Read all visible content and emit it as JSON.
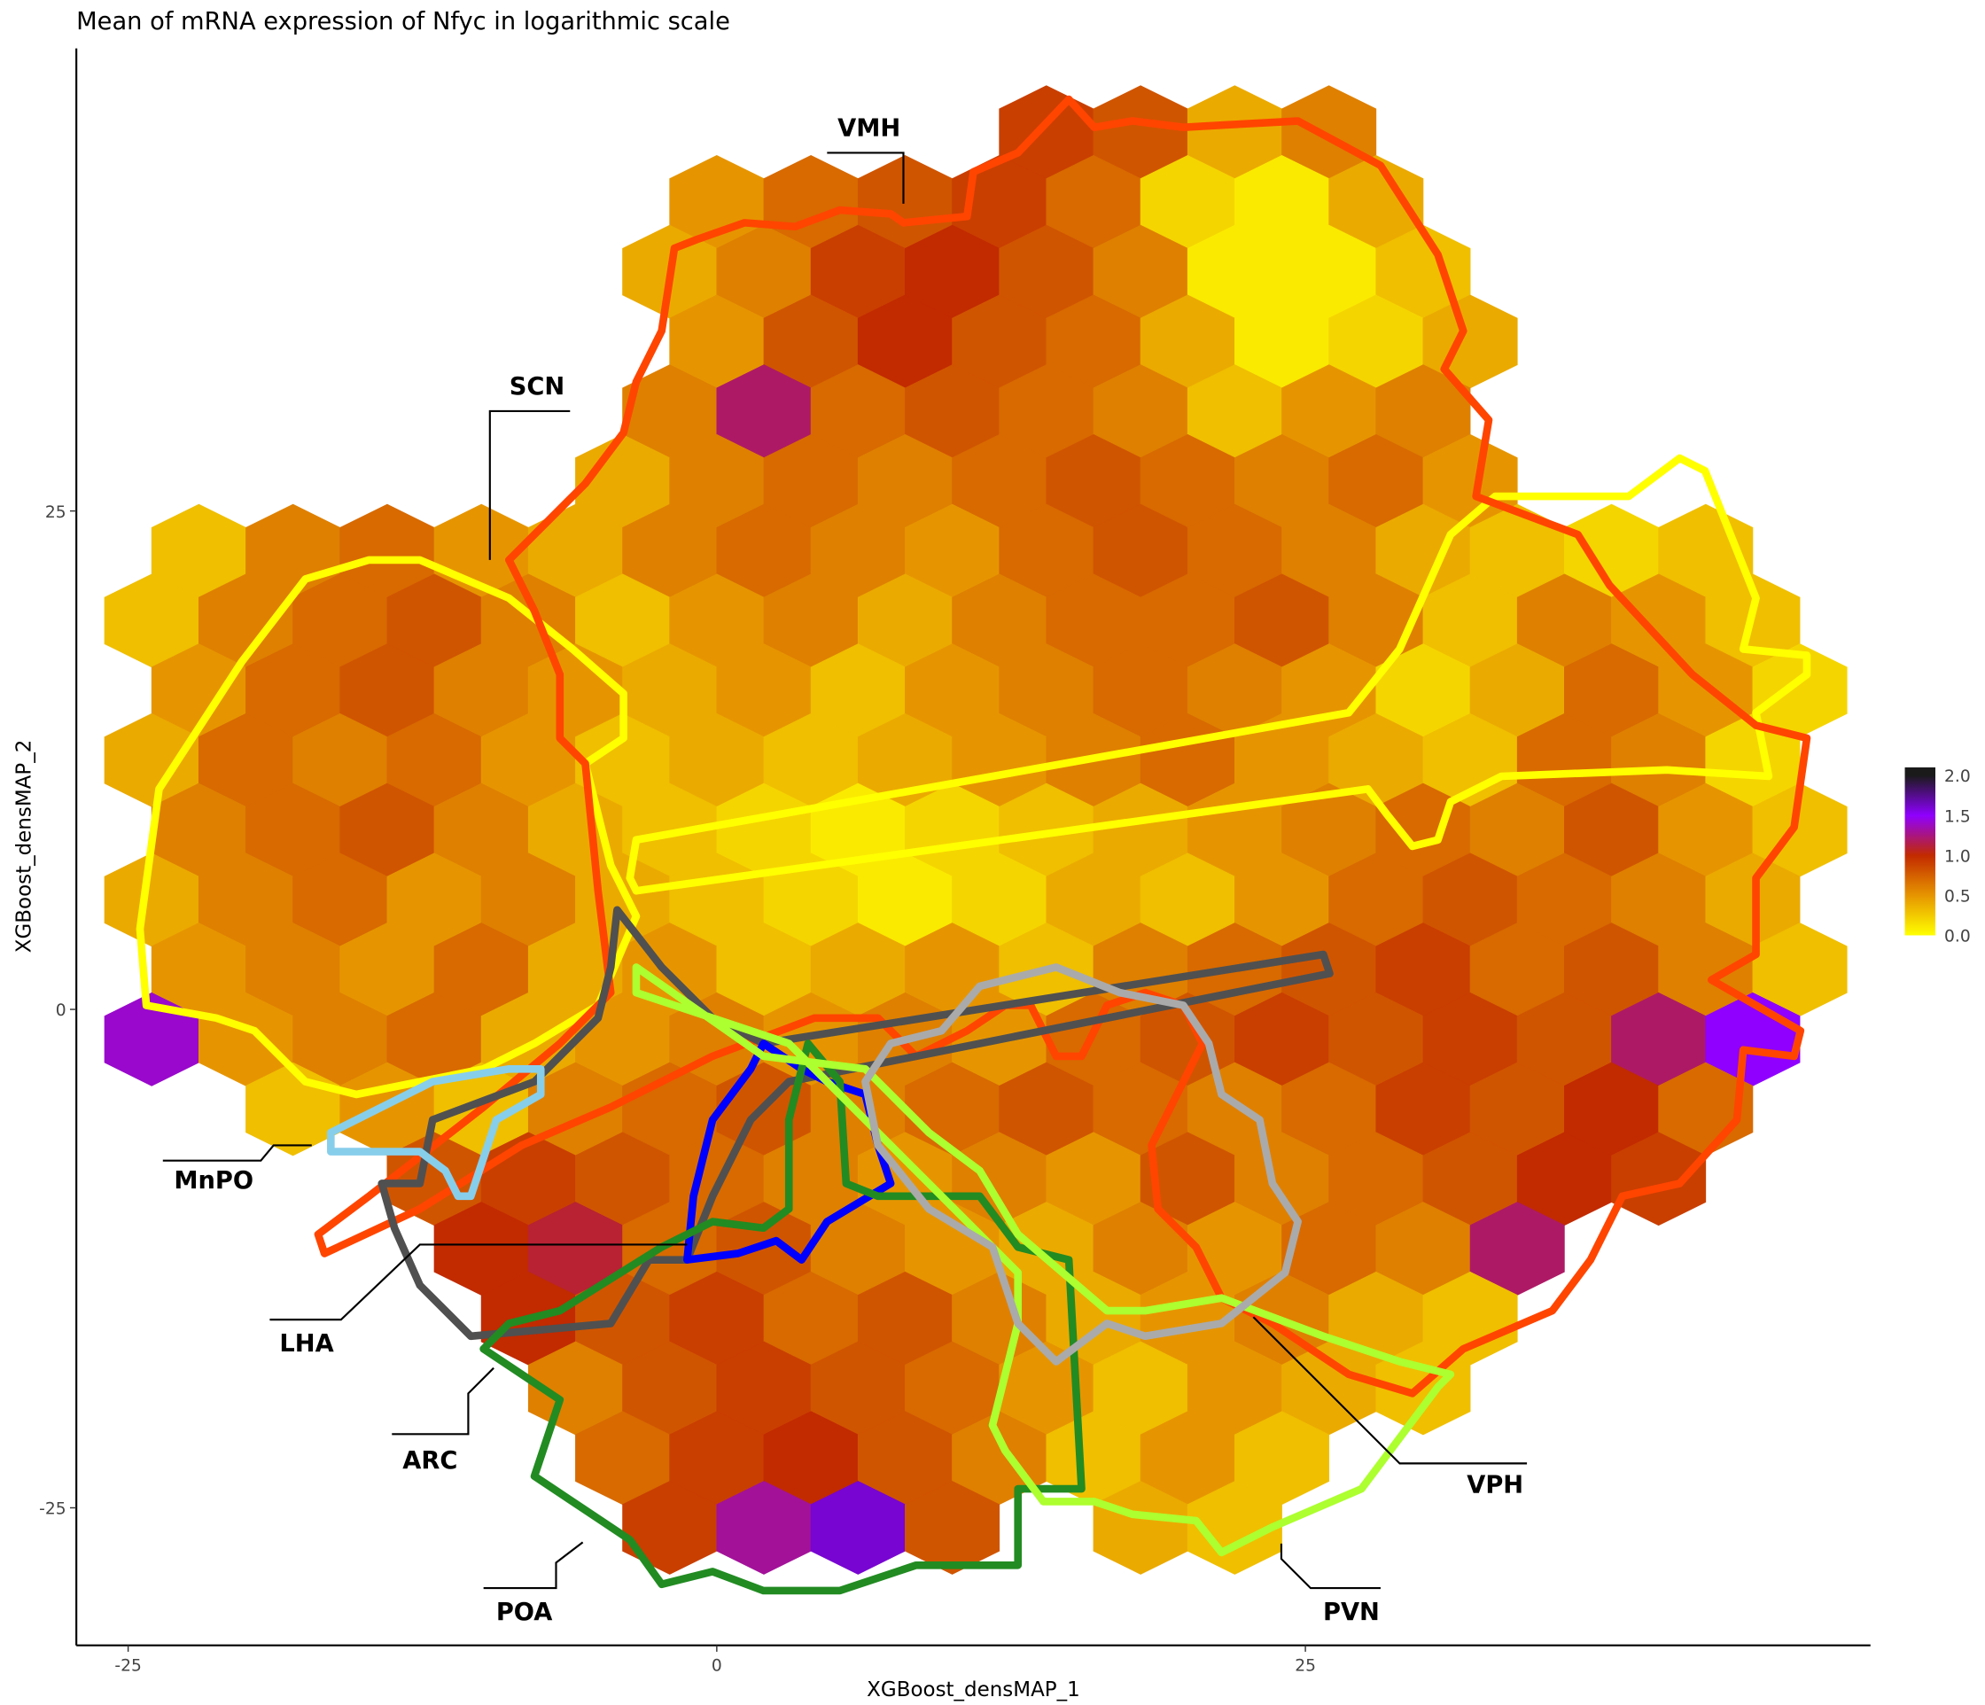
{
  "chart_data": {
    "type": "hexbin",
    "title": "Mean of mRNA expression of Nfyc in logarithmic scale",
    "x_label": "XGBoost_densMAP_1",
    "y_label": "XGBoost_densMAP_2",
    "xlim": [
      -27.2,
      49.0
    ],
    "ylim": [
      -31.9,
      48.2
    ],
    "xticks": [
      -25,
      0,
      25
    ],
    "yticks": [
      -25,
      0,
      25
    ],
    "binwidth": 4,
    "colormap": [
      "#ffff00",
      "#e69500",
      "#c22a00",
      "#8f00ff",
      "#1a1a1a"
    ],
    "clim": [
      0,
      2.1
    ],
    "cticks": [
      {
        "value": 0,
        "label": "0.0"
      },
      0.5,
      {
        "value": 1,
        "label": "1.0"
      },
      1.5,
      {
        "value": 2,
        "label": "2.0"
      }
    ],
    "regions": [
      "VMH",
      "SCN",
      "MnPO",
      "LHA",
      "ARC",
      "POA",
      "PVN",
      "VPH"
    ],
    "hex_rows": [
      {
        "y": 44,
        "x_start": 14,
        "values": [
          0.9,
          0.8,
          0.4,
          0.6
        ]
      },
      {
        "y": 40.5,
        "x_start": 0,
        "values": [
          0.5,
          0.7,
          0.8,
          0.9,
          0.7,
          0.2,
          0.1,
          0.4
        ]
      },
      {
        "y": 37,
        "x_start": -2,
        "values": [
          0.4,
          0.6,
          0.9,
          1.0,
          0.8,
          0.6,
          0.1,
          0.1,
          0.3
        ]
      },
      {
        "y": 33.5,
        "x_start": 0,
        "values": [
          0.5,
          0.8,
          1.0,
          0.8,
          0.7,
          0.4,
          0.1,
          0.2,
          0.4
        ]
      },
      {
        "y": 30,
        "x_start": -2,
        "values": [
          0.6,
          1.2,
          0.7,
          0.8,
          0.7,
          0.6,
          0.3,
          0.5,
          0.6
        ]
      },
      {
        "y": 26.5,
        "x_start": -4,
        "values": [
          0.4,
          0.6,
          0.7,
          0.6,
          0.7,
          0.8,
          0.7,
          0.6,
          0.7,
          0.5
        ]
      },
      {
        "y": 23,
        "x_start": -22,
        "values": [
          0.3,
          0.6,
          0.7,
          0.5,
          0.4,
          0.6,
          0.7,
          0.6,
          0.5,
          0.7,
          0.8,
          0.7,
          0.6,
          0.4,
          0.3,
          0.2,
          0.3
        ]
      },
      {
        "y": 19.5,
        "x_start": -24,
        "values": [
          0.3,
          0.6,
          0.7,
          0.8,
          0.6,
          0.3,
          0.5,
          0.6,
          0.4,
          0.6,
          0.7,
          0.7,
          0.8,
          0.6,
          0.3,
          0.6,
          0.5,
          0.3
        ]
      },
      {
        "y": 16,
        "x_start": -22,
        "values": [
          0.5,
          0.7,
          0.8,
          0.6,
          0.5,
          0.4,
          0.5,
          0.3,
          0.5,
          0.6,
          0.7,
          0.6,
          0.5,
          0.2,
          0.4,
          0.7,
          0.5,
          0.2
        ]
      },
      {
        "y": 12.5,
        "x_start": -24,
        "values": [
          0.4,
          0.7,
          0.6,
          0.7,
          0.5,
          0.3,
          0.4,
          0.3,
          0.4,
          0.5,
          0.6,
          0.7,
          0.5,
          0.4,
          0.3,
          0.7,
          0.6,
          0.2
        ]
      },
      {
        "y": 9,
        "x_start": -22,
        "values": [
          0.6,
          0.7,
          0.8,
          0.6,
          0.4,
          0.3,
          0.2,
          0.1,
          0.2,
          0.3,
          0.4,
          0.5,
          0.6,
          0.7,
          0.6,
          0.8,
          0.5,
          0.3
        ]
      },
      {
        "y": 5.5,
        "x_start": -24,
        "values": [
          0.4,
          0.6,
          0.7,
          0.5,
          0.6,
          0.4,
          0.3,
          0.2,
          0.1,
          0.2,
          0.4,
          0.3,
          0.5,
          0.7,
          0.8,
          0.7,
          0.6,
          0.4
        ]
      },
      {
        "y": 2,
        "x_start": -22,
        "values": [
          0.5,
          0.6,
          0.5,
          0.7,
          0.4,
          0.5,
          0.3,
          0.4,
          0.5,
          0.3,
          0.6,
          0.7,
          0.8,
          0.9,
          0.7,
          0.8,
          0.6,
          0.3
        ]
      },
      {
        "y": -1.5,
        "x_start": -24,
        "values": [
          1.4,
          0.5,
          0.6,
          0.7,
          0.4,
          0.5,
          0.6,
          0.5,
          0.6,
          0.5,
          0.7,
          0.8,
          0.9,
          0.8,
          0.9,
          0.8,
          1.2,
          1.5
        ]
      },
      {
        "y": -5,
        "x_start": -18,
        "values": [
          0.3,
          0.5,
          0.3,
          0.6,
          0.7,
          0.8,
          0.6,
          0.7,
          0.8,
          0.7,
          0.6,
          0.7,
          0.9,
          0.8,
          1.0,
          0.7
        ]
      },
      {
        "y": -8.5,
        "x_start": -12,
        "values": [
          0.8,
          0.9,
          0.8,
          0.7,
          0.6,
          0.5,
          0.6,
          0.5,
          0.8,
          0.6,
          0.7,
          0.8,
          1.0,
          0.9
        ]
      },
      {
        "y": -12,
        "x_start": -10,
        "values": [
          1.0,
          1.1,
          0.7,
          0.8,
          0.6,
          0.5,
          0.4,
          0.6,
          0.5,
          0.7,
          0.6,
          1.2
        ]
      },
      {
        "y": -15.5,
        "x_start": -8,
        "values": [
          1.0,
          0.8,
          0.9,
          0.7,
          0.8,
          0.6,
          0.4,
          0.5,
          0.6,
          0.4,
          0.3
        ]
      },
      {
        "y": -19,
        "x_start": -6,
        "values": [
          0.6,
          0.8,
          0.9,
          0.8,
          0.7,
          0.5,
          0.3,
          0.5,
          0.4,
          0.3
        ]
      },
      {
        "y": -22.5,
        "x_start": -4,
        "values": [
          0.7,
          0.9,
          1.0,
          0.8,
          0.6,
          0.3,
          0.5,
          0.3
        ]
      },
      {
        "y": -26,
        "x_start": -2,
        "values": [
          0.9,
          1.3,
          1.6,
          0.8,
          null,
          0.4,
          0.3
        ]
      }
    ]
  }
}
